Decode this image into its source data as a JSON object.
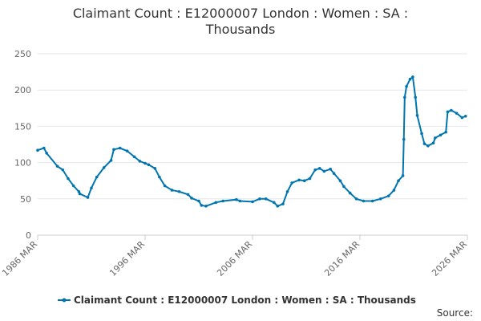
{
  "chart_data": {
    "type": "line",
    "title": "Claimant Count : E12000007 London : Women : SA : Thousands",
    "source": "Source:",
    "x": [
      "1986 MAR",
      "1986 OCT",
      "1987 JAN",
      "1988 JAN",
      "1988 JUL",
      "1989 JAN",
      "1989 JUL",
      "1990 JAN",
      "1990 FEB",
      "1990 NOV",
      "1991 MAR",
      "1991 SEP",
      "1992 MAY",
      "1993 JAN",
      "1993 APR",
      "1993 NOV",
      "1994 JUL",
      "1995 MAR",
      "1995 SEP",
      "1996 MAR",
      "1996 JUL",
      "1997 FEB",
      "1997 JUL",
      "1998 JAN",
      "1998 SEP",
      "1999 MAY",
      "2000 MAR",
      "2000 JUL",
      "2001 MAR",
      "2001 JUN",
      "2001 NOV",
      "2002 OCT",
      "2003 JUN",
      "2004 SEP",
      "2005 JAN",
      "2006 MAR",
      "2006 NOV",
      "2007 JUN",
      "2008 MAR",
      "2008 JUL",
      "2009 JAN",
      "2009 JUN",
      "2009 NOV",
      "2010 JUL",
      "2011 JAN",
      "2011 JUL",
      "2012 JAN",
      "2012 JUN",
      "2012 NOV",
      "2013 JUN",
      "2013 OCT",
      "2014 MAY",
      "2014 SEP",
      "2015 APR",
      "2015 NOV",
      "2016 JUL",
      "2017 MAY",
      "2018 FEB",
      "2018 NOV",
      "2019 MAY",
      "2019 OCT",
      "2020 MAR",
      "2020 APR",
      "2020 MAY",
      "2020 JUL",
      "2020 NOV",
      "2021 FEB",
      "2021 MAY",
      "2021 JUL",
      "2021 DEC",
      "2022 MAR",
      "2022 JUL",
      "2023 JAN",
      "2023 MAR",
      "2023 SEP",
      "2024 MAR",
      "2024 MAY",
      "2024 SEP",
      "2025 MAR",
      "2025 SEP",
      "2026 JAN"
    ],
    "series": [
      {
        "name": "Claimant Count : E12000007 London : Women : SA : Thousands",
        "color": "#0075b0",
        "values": [
          117,
          120,
          113,
          95,
          90,
          78,
          68,
          60,
          57,
          52,
          65,
          80,
          93,
          103,
          118,
          120,
          116,
          108,
          102,
          99,
          97,
          92,
          80,
          68,
          62,
          60,
          56,
          51,
          47,
          41,
          40,
          45,
          47,
          49,
          47,
          46,
          50,
          50,
          45,
          40,
          43,
          60,
          72,
          76,
          75,
          78,
          90,
          92,
          88,
          91,
          85,
          75,
          67,
          58,
          50,
          47,
          47,
          50,
          54,
          62,
          75,
          82,
          132,
          190,
          205,
          215,
          218,
          190,
          165,
          140,
          126,
          123,
          127,
          134,
          138,
          142,
          170,
          172,
          168,
          162,
          164
        ]
      }
    ],
    "xlim": [
      "1986 MAR",
      "2026 MAR"
    ],
    "xticks": [
      "1986 MAR",
      "1996 MAR",
      "2006 MAR",
      "2016 MAR",
      "2026 MAR"
    ],
    "ylim": [
      0,
      250
    ],
    "yticks": [
      0,
      50,
      100,
      150,
      200,
      250
    ],
    "grid": true
  }
}
